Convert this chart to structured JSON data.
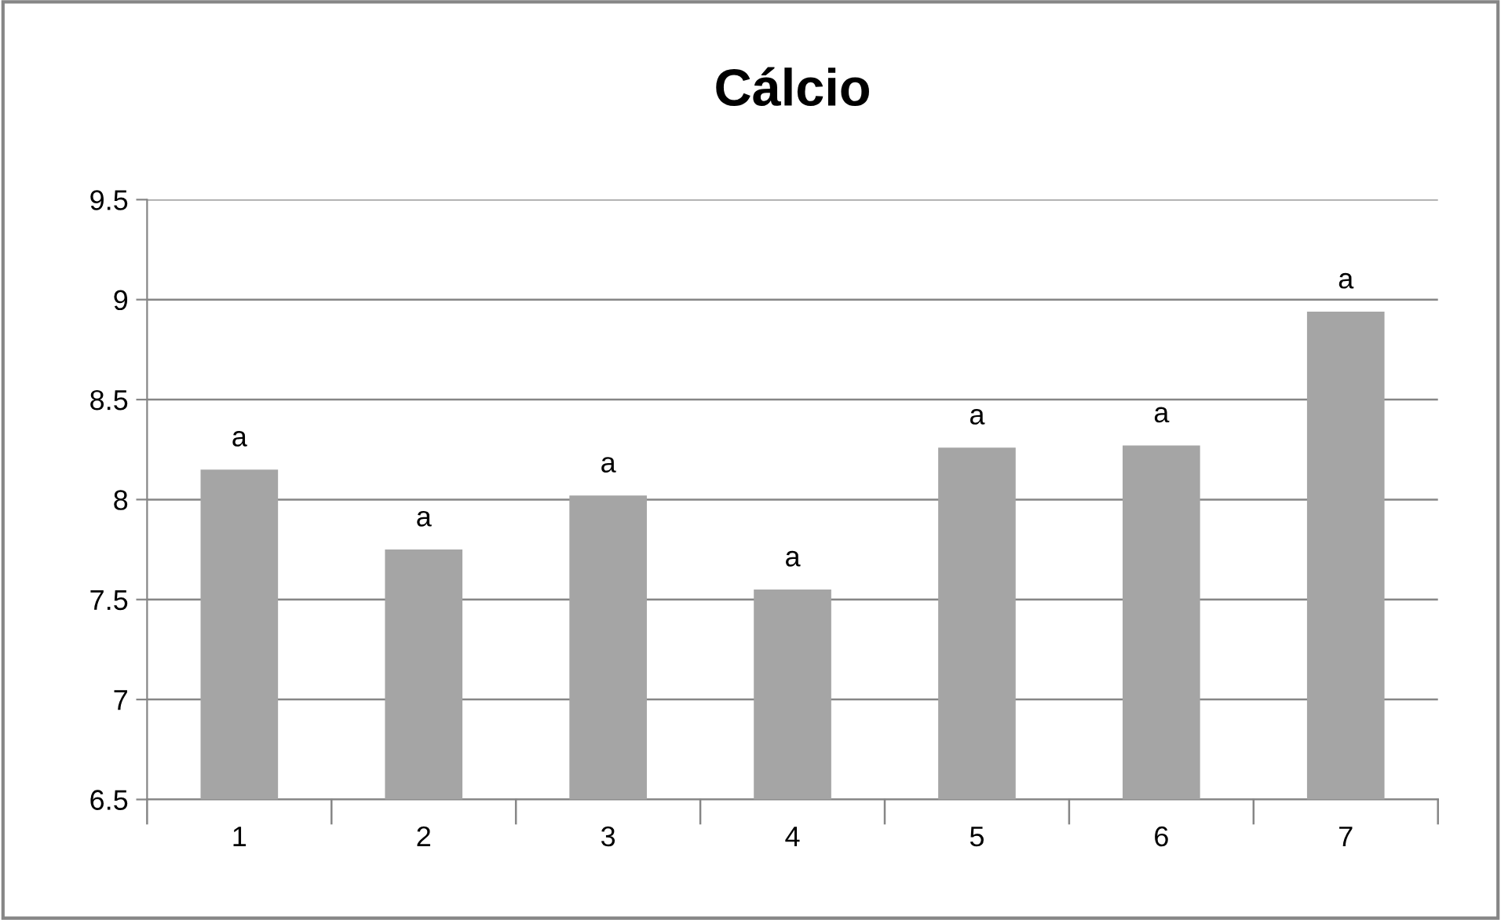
{
  "chart_data": {
    "type": "bar",
    "title": "Cálcio",
    "categories": [
      "1",
      "2",
      "3",
      "4",
      "5",
      "6",
      "7"
    ],
    "values": [
      8.15,
      7.75,
      8.02,
      7.55,
      8.26,
      8.27,
      8.94
    ],
    "value_labels": [
      "a",
      "a",
      "a",
      "a",
      "a",
      "a",
      "a"
    ],
    "color": "#a5a5a5",
    "ylim": [
      6.5,
      9.5
    ],
    "yticks": [
      6.5,
      7,
      7.5,
      8,
      8.5,
      9,
      9.5
    ],
    "grid": "y",
    "legend": false
  }
}
